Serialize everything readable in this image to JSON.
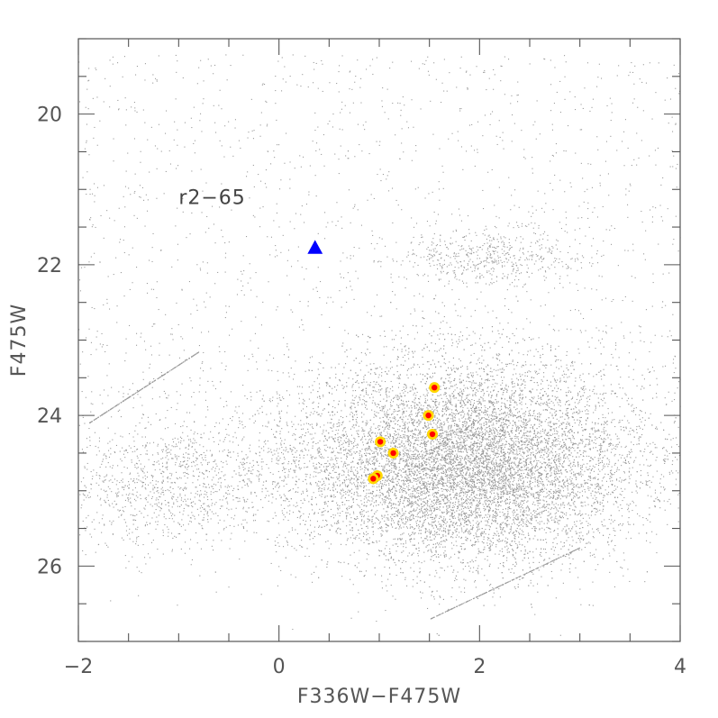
{
  "chart_data": {
    "type": "scatter",
    "title": "",
    "xlabel": "F336W−F475W",
    "ylabel": "F475W",
    "xlim": [
      -2,
      4
    ],
    "ylim": [
      27.0,
      19.0
    ],
    "y_inverted": true,
    "x_ticks": [
      -2,
      0,
      2,
      4
    ],
    "x_tick_labels": [
      "−2",
      "0",
      "2",
      "4"
    ],
    "y_ticks": [
      20,
      22,
      24,
      26
    ],
    "y_tick_labels": [
      "20",
      "22",
      "24",
      "26"
    ],
    "grid": false,
    "annotations": [
      {
        "text": "r2−65",
        "x": -1.0,
        "y": 21.1
      }
    ],
    "series": [
      {
        "marker": "small-dots",
        "color": "#9a9a9a",
        "note_density_center": [
          2.0,
          24.6
        ],
        "values_description_omitted": true
      },
      {
        "marker": "triangle",
        "color": "#0000ff",
        "points": [
          {
            "x": 0.36,
            "y": 21.78
          }
        ]
      },
      {
        "marker": "circle",
        "color": "#ff0000",
        "edgecolor": "#ffd700",
        "points": [
          {
            "x": 1.55,
            "y": 23.63
          },
          {
            "x": 1.49,
            "y": 24.0
          },
          {
            "x": 1.53,
            "y": 24.25
          },
          {
            "x": 1.01,
            "y": 24.35
          },
          {
            "x": 1.14,
            "y": 24.5
          },
          {
            "x": 0.98,
            "y": 24.8
          },
          {
            "x": 0.94,
            "y": 24.84
          }
        ]
      }
    ],
    "colors": {
      "axes": "#555555",
      "background_points": "#9a9a9a",
      "triangle": "#0000ff",
      "circle_fill": "#ff0000",
      "circle_edge": "#ffd700"
    }
  }
}
